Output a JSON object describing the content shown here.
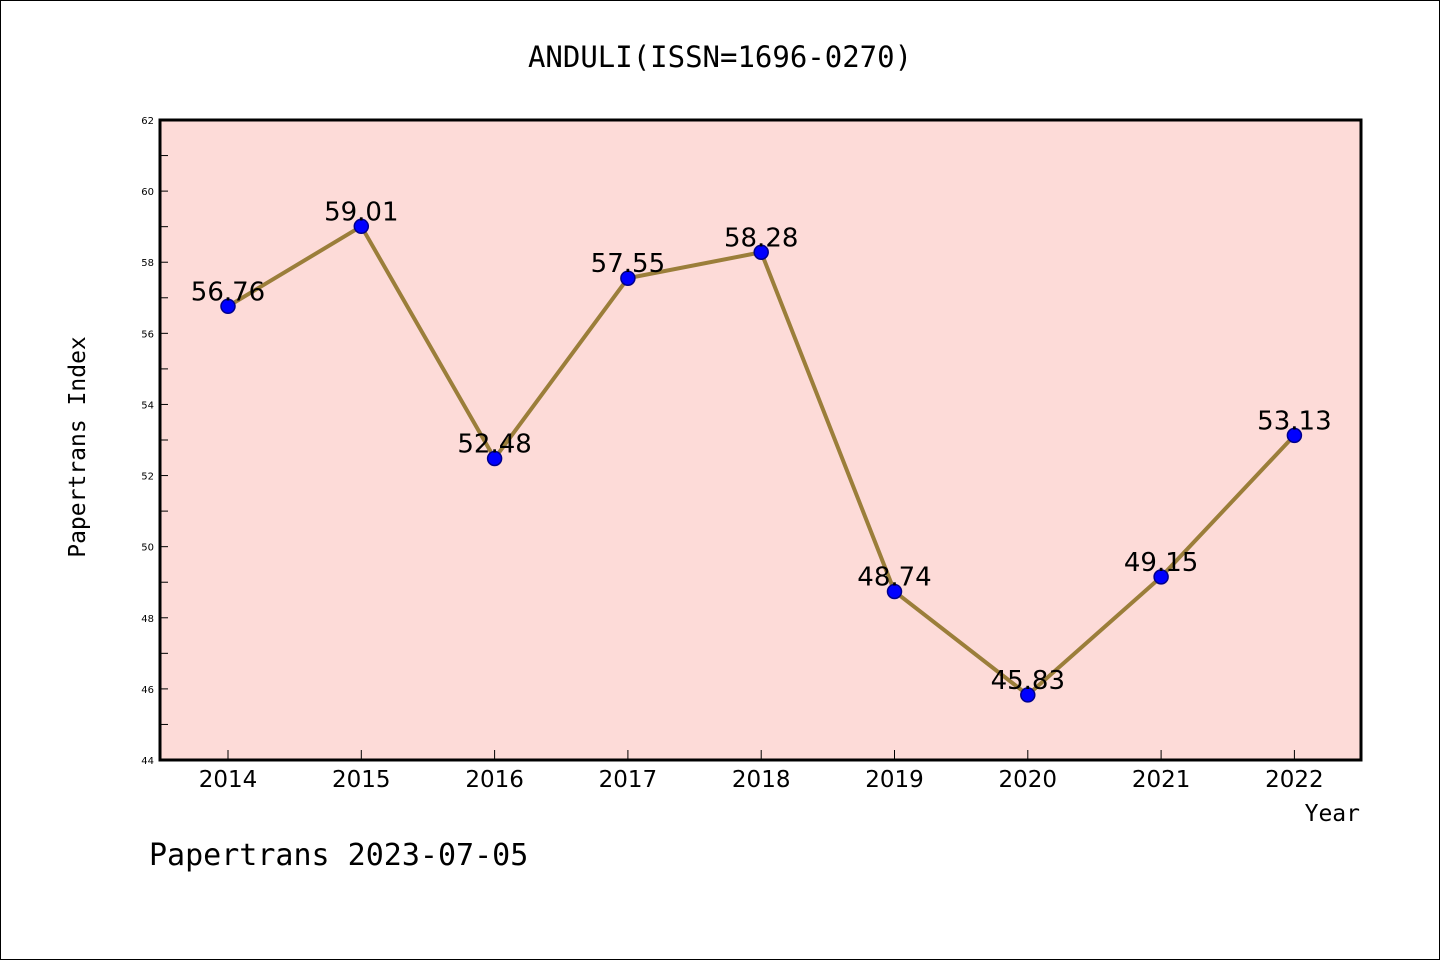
{
  "colors": {
    "plot_background": "#fddbd8",
    "line": "#9b7e3a",
    "marker_fill": "#0000ff",
    "marker_edge": "#00008b",
    "axes": "#000000"
  },
  "footer_text": "Papertrans 2023-07-05",
  "chart_data": {
    "type": "line",
    "title": "ANDULI(ISSN=1696-0270)",
    "xlabel": "Year",
    "ylabel": "Papertrans Index",
    "categories": [
      "2014",
      "2015",
      "2016",
      "2017",
      "2018",
      "2019",
      "2020",
      "2021",
      "2022"
    ],
    "series": [
      {
        "values": [
          56.76,
          59.01,
          52.48,
          57.55,
          58.28,
          48.74,
          45.83,
          49.15,
          53.13
        ],
        "labels": [
          "56.76",
          "59.01",
          "52.48",
          "57.55",
          "58.28",
          "48.74",
          "45.83",
          "49.15",
          "53.13"
        ]
      }
    ],
    "ylim": [
      44,
      62
    ],
    "yticks": [
      "44",
      "46",
      "48",
      "50",
      "52",
      "54",
      "56",
      "58",
      "60",
      "62"
    ],
    "grid": false,
    "legend": "none"
  }
}
